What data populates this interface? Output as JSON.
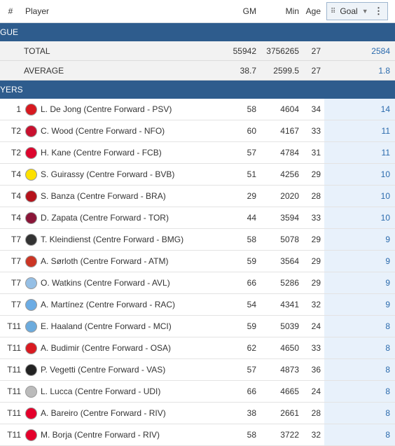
{
  "header": {
    "rank": "#",
    "player": "Player",
    "gm": "GM",
    "min": "Min",
    "age": "Age",
    "goal": "Goal"
  },
  "sections": {
    "league": "GUE",
    "players": "YERS"
  },
  "summary": [
    {
      "label": "TOTAL",
      "gm": "55942",
      "min": "3756265",
      "age": "27",
      "goal": "2584"
    },
    {
      "label": "AVERAGE",
      "gm": "38.7",
      "min": "2599.5",
      "age": "27",
      "goal": "1.8"
    }
  ],
  "players": [
    {
      "rank": "1",
      "name": "L. De Jong (Centre Forward - PSV)",
      "gm": "58",
      "min": "4604",
      "age": "34",
      "goal": "14",
      "color": "#d71920"
    },
    {
      "rank": "T2",
      "name": "C. Wood (Centre Forward - NFO)",
      "gm": "60",
      "min": "4167",
      "age": "33",
      "goal": "11",
      "color": "#c8102e"
    },
    {
      "rank": "T2",
      "name": "H. Kane (Centre Forward - FCB)",
      "gm": "57",
      "min": "4784",
      "age": "31",
      "goal": "11",
      "color": "#dc052d"
    },
    {
      "rank": "T4",
      "name": "S. Guirassy (Centre Forward - BVB)",
      "gm": "51",
      "min": "4256",
      "age": "29",
      "goal": "10",
      "color": "#fde100"
    },
    {
      "rank": "T4",
      "name": "S. Banza (Centre Forward - BRA)",
      "gm": "29",
      "min": "2020",
      "age": "28",
      "goal": "10",
      "color": "#b5121b"
    },
    {
      "rank": "T4",
      "name": "D. Zapata (Centre Forward - TOR)",
      "gm": "44",
      "min": "3594",
      "age": "33",
      "goal": "10",
      "color": "#8a1538"
    },
    {
      "rank": "T7",
      "name": "T. Kleindienst (Centre Forward - BMG)",
      "gm": "58",
      "min": "5078",
      "age": "29",
      "goal": "9",
      "color": "#333333"
    },
    {
      "rank": "T7",
      "name": "A. Sørloth (Centre Forward - ATM)",
      "gm": "59",
      "min": "3564",
      "age": "29",
      "goal": "9",
      "color": "#cb3524"
    },
    {
      "rank": "T7",
      "name": "O. Watkins (Centre Forward - AVL)",
      "gm": "66",
      "min": "5286",
      "age": "29",
      "goal": "9",
      "color": "#95bfe5"
    },
    {
      "rank": "T7",
      "name": "A. Martínez (Centre Forward - RAC)",
      "gm": "54",
      "min": "4341",
      "age": "32",
      "goal": "9",
      "color": "#6cace4"
    },
    {
      "rank": "T11",
      "name": "E. Haaland (Centre Forward - MCI)",
      "gm": "59",
      "min": "5039",
      "age": "24",
      "goal": "8",
      "color": "#6cabdd"
    },
    {
      "rank": "T11",
      "name": "A. Budimir (Centre Forward - OSA)",
      "gm": "62",
      "min": "4650",
      "age": "33",
      "goal": "8",
      "color": "#d91a21"
    },
    {
      "rank": "T11",
      "name": "P. Vegetti (Centre Forward - VAS)",
      "gm": "57",
      "min": "4873",
      "age": "36",
      "goal": "8",
      "color": "#222222"
    },
    {
      "rank": "T11",
      "name": "L. Lucca (Centre Forward - UDI)",
      "gm": "66",
      "min": "4665",
      "age": "24",
      "goal": "8",
      "color": "#bbbbbb"
    },
    {
      "rank": "T11",
      "name": "A. Bareiro (Centre Forward - RIV)",
      "gm": "38",
      "min": "2661",
      "age": "28",
      "goal": "8",
      "color": "#e4002b"
    },
    {
      "rank": "T11",
      "name": "M. Borja (Centre Forward - RIV)",
      "gm": "58",
      "min": "3722",
      "age": "32",
      "goal": "8",
      "color": "#e4002b"
    }
  ],
  "colors": {
    "section_bg": "#2e5c8d",
    "goal_text": "#2a6aad",
    "goal_column_bg": "#e8f1fb"
  }
}
